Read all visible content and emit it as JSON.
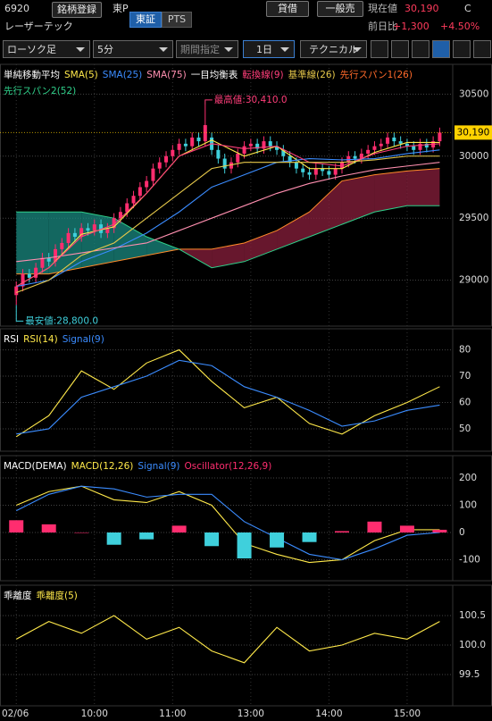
{
  "header": {
    "code": "6920",
    "register": "銘柄登録",
    "market": "東P",
    "name": "レーザーテック",
    "exchanges": [
      "東証",
      "PTS"
    ],
    "margin": "貸借",
    "short": "一般売",
    "price_label": "現在値",
    "price": "30,190",
    "price_flag": "C",
    "change_label": "前日比",
    "change": "+1,300",
    "change_pct": "+4.50%"
  },
  "toolbar": {
    "chart_type": "ローソク足",
    "interval": "5分",
    "period": "期間指定",
    "range": "1日",
    "technical": "テクニカル"
  },
  "chart_data": [
    {
      "type": "candlestick",
      "legend_groups": [
        "単純移動平均",
        "一目均衡表"
      ],
      "xlim": [
        -2.5,
        67
      ],
      "ylim": [
        28630,
        30740
      ],
      "yticks": [
        29000,
        29500,
        30000,
        30500
      ],
      "x": [
        0,
        5,
        10,
        15,
        20,
        25,
        30,
        35,
        40,
        45,
        50,
        55,
        60,
        65
      ],
      "candles": {
        "up_color": "#ff2d6f",
        "down_color": "#3fd0dc",
        "x": [
          0,
          1,
          2,
          3,
          4,
          5,
          6,
          7,
          8,
          9,
          10,
          11,
          12,
          13,
          14,
          15,
          16,
          17,
          18,
          19,
          20,
          21,
          22,
          23,
          24,
          25,
          26,
          27,
          28,
          29,
          30,
          31,
          32,
          33,
          34,
          35,
          36,
          37,
          38,
          39,
          40,
          41,
          42,
          43,
          44,
          45,
          46,
          47,
          48,
          49,
          50,
          51,
          52,
          53,
          54,
          55,
          56,
          57,
          58,
          59,
          60,
          61,
          62,
          63,
          64,
          65
        ],
        "open": [
          28880,
          28950,
          29050,
          29020,
          29100,
          29180,
          29150,
          29250,
          29300,
          29380,
          29350,
          29420,
          29400,
          29450,
          29380,
          29420,
          29500,
          29550,
          29620,
          29680,
          29750,
          29800,
          29900,
          29950,
          30000,
          30050,
          30100,
          30080,
          30150,
          30120,
          30150,
          30050,
          29980,
          29900,
          29950,
          30020,
          30080,
          30100,
          30060,
          30120,
          30080,
          30050,
          30000,
          29950,
          29900,
          29870,
          29850,
          29900,
          29880,
          29850,
          29900,
          29950,
          30000,
          29980,
          30020,
          30050,
          30080,
          30100,
          30150,
          30120,
          30100,
          30080,
          30050,
          30100,
          30070,
          30120
        ],
        "high": [
          28990,
          29090,
          29090,
          29140,
          29220,
          29220,
          29290,
          29340,
          29420,
          29420,
          29460,
          29460,
          29490,
          29490,
          29460,
          29540,
          29590,
          29660,
          29720,
          29790,
          29840,
          29940,
          29990,
          30040,
          30090,
          30140,
          30140,
          30190,
          30190,
          30410,
          30190,
          30090,
          30020,
          29990,
          30060,
          30120,
          30140,
          30140,
          30160,
          30160,
          30120,
          30090,
          30040,
          29990,
          29940,
          29910,
          29940,
          29940,
          29920,
          29940,
          29990,
          30040,
          30040,
          30060,
          30090,
          30120,
          30140,
          30190,
          30190,
          30160,
          30140,
          30120,
          30140,
          30140,
          30160,
          30230
        ],
        "low": [
          28800,
          28910,
          28980,
          28980,
          29060,
          29110,
          29110,
          29210,
          29260,
          29310,
          29310,
          29360,
          29360,
          29340,
          29340,
          29380,
          29460,
          29510,
          29580,
          29640,
          29710,
          29760,
          29860,
          29910,
          29960,
          30010,
          30040,
          30040,
          30080,
          30080,
          30010,
          29940,
          29860,
          29860,
          29910,
          29980,
          30040,
          30020,
          30020,
          30040,
          30010,
          29960,
          29910,
          29860,
          29830,
          29810,
          29810,
          29840,
          29810,
          29810,
          29860,
          29910,
          29940,
          29940,
          29980,
          30010,
          30040,
          30060,
          30080,
          30060,
          30040,
          30010,
          30010,
          30030,
          30030,
          30080
        ],
        "close": [
          28950,
          29050,
          29020,
          29100,
          29180,
          29150,
          29250,
          29300,
          29380,
          29350,
          29420,
          29400,
          29450,
          29380,
          29420,
          29500,
          29550,
          29620,
          29680,
          29750,
          29800,
          29900,
          29950,
          30000,
          30050,
          30100,
          30080,
          30150,
          30120,
          30250,
          30050,
          29980,
          29900,
          29950,
          30020,
          30080,
          30100,
          30060,
          30120,
          30080,
          30050,
          30000,
          29950,
          29900,
          29870,
          29850,
          29900,
          29880,
          29850,
          29900,
          29950,
          30000,
          29980,
          30020,
          30050,
          30080,
          30100,
          30150,
          30120,
          30100,
          30080,
          30050,
          30100,
          30070,
          30120,
          30190
        ]
      },
      "series": [
        {
          "name": "SMA(5)",
          "color": "#ffe94a",
          "values": [
            28950,
            29100,
            29370,
            29430,
            29700,
            30000,
            30130,
            30000,
            30080,
            29900,
            29900,
            30030,
            30110,
            30110
          ]
        },
        {
          "name": "SMA(25)",
          "color": "#3b8cff",
          "values": [
            28950,
            29000,
            29150,
            29250,
            29380,
            29550,
            29750,
            29850,
            29950,
            29980,
            29970,
            29980,
            30020,
            30050
          ]
        },
        {
          "name": "SMA(75)",
          "color": "#ff8fb0",
          "values": [
            29150,
            29180,
            29220,
            29260,
            29300,
            29400,
            29500,
            29600,
            29700,
            29780,
            29840,
            29890,
            29920,
            29950
          ]
        },
        {
          "name": "転換線(9)",
          "color": "#ff3e7a",
          "values": [
            28950,
            29100,
            29350,
            29450,
            29700,
            30000,
            30100,
            30060,
            30080,
            29950,
            29920,
            30020,
            30080,
            30100
          ]
        },
        {
          "name": "基準線(26)",
          "color": "#e6c84a",
          "values": [
            28900,
            29000,
            29200,
            29300,
            29500,
            29700,
            29900,
            29950,
            29950,
            29950,
            29950,
            29970,
            30000,
            30000
          ]
        }
      ],
      "cloud": {
        "up_color": "#1a8a80",
        "down_color": "#8a1f3c",
        "span1": {
          "name": "先行スパン1(26)",
          "color": "#ff8a2a",
          "values": [
            29050,
            29050,
            29100,
            29150,
            29200,
            29250,
            29250,
            29300,
            29400,
            29550,
            29800,
            29850,
            29880,
            29900
          ]
        },
        "span2": {
          "name": "先行スパン2(52)",
          "color": "#2fd08a",
          "values": [
            29550,
            29550,
            29550,
            29500,
            29350,
            29250,
            29100,
            29150,
            29250,
            29350,
            29450,
            29550,
            29600,
            29600
          ]
        }
      },
      "annotations": [
        {
          "x": 29,
          "y": 30410,
          "label": "最高値:30,410.0"
        },
        {
          "x": 0,
          "y": 28800,
          "label": "最安値:28,800.0"
        }
      ],
      "last_price": {
        "value": 30190,
        "label": "30,190"
      }
    },
    {
      "type": "line",
      "title": "RSI",
      "xlim": [
        -2.5,
        67
      ],
      "ylim": [
        41.5,
        88
      ],
      "yticks": [
        50,
        60,
        70,
        80
      ],
      "x": [
        0,
        5,
        10,
        15,
        20,
        25,
        30,
        35,
        40,
        45,
        50,
        55,
        60,
        65
      ],
      "series": [
        {
          "name": "RSI(14)",
          "color": "#ffe94a",
          "values": [
            47,
            55,
            72,
            65,
            75,
            80,
            68,
            58,
            62,
            52,
            48,
            55,
            60,
            66
          ]
        },
        {
          "name": "Signal(9)",
          "color": "#3b8cff",
          "values": [
            48,
            50,
            62,
            66,
            70,
            76,
            74,
            66,
            62,
            57,
            51,
            53,
            57,
            59
          ]
        }
      ]
    },
    {
      "type": "line",
      "title": "MACD(DEMA)",
      "xlim": [
        -2.5,
        67
      ],
      "ylim": [
        -177,
        282
      ],
      "yticks": [
        -100,
        0,
        100,
        200
      ],
      "x": [
        0,
        5,
        10,
        15,
        20,
        25,
        30,
        35,
        40,
        45,
        50,
        55,
        60,
        65
      ],
      "series": [
        {
          "name": "MACD(12,26)",
          "color": "#ffe94a",
          "values": [
            100,
            150,
            170,
            120,
            110,
            150,
            100,
            -40,
            -80,
            -110,
            -100,
            -30,
            10,
            10
          ]
        },
        {
          "name": "Signal(9)",
          "color": "#3b8cff",
          "values": [
            80,
            140,
            170,
            160,
            130,
            140,
            140,
            40,
            -20,
            -80,
            -100,
            -60,
            -10,
            0
          ]
        },
        {
          "name": "Oscillator(12,26,9)",
          "type": "bar",
          "color": "#ff2d6f",
          "negative_color": "#3fd0dc",
          "values": [
            45,
            30,
            0,
            -45,
            -25,
            25,
            -50,
            -95,
            -55,
            -35,
            5,
            40,
            25,
            10
          ]
        }
      ]
    },
    {
      "type": "line",
      "title": "乖離度",
      "xlim": [
        -2.5,
        67
      ],
      "ylim": [
        98.97,
        101.015
      ],
      "yticks": [
        99.5,
        {
          "value": 100,
          "label": "100.0"
        },
        100.5
      ],
      "x": [
        0,
        5,
        10,
        15,
        20,
        25,
        30,
        35,
        40,
        45,
        50,
        55,
        60,
        65
      ],
      "series": [
        {
          "name": "乖離度(5)",
          "color": "#ffe94a",
          "values": [
            100.1,
            100.4,
            100.2,
            100.5,
            100.1,
            100.3,
            99.9,
            99.7,
            100.3,
            99.9,
            100,
            100.2,
            100.1,
            100.4
          ]
        }
      ],
      "xticks": [
        {
          "value": 0,
          "label": "02/06"
        },
        {
          "value": 12,
          "label": "10:00"
        },
        {
          "value": 24,
          "label": "11:00"
        },
        {
          "value": 36,
          "label": "13:00"
        },
        {
          "value": 48,
          "label": "14:00"
        },
        {
          "value": 60,
          "label": "15:00"
        }
      ]
    }
  ]
}
